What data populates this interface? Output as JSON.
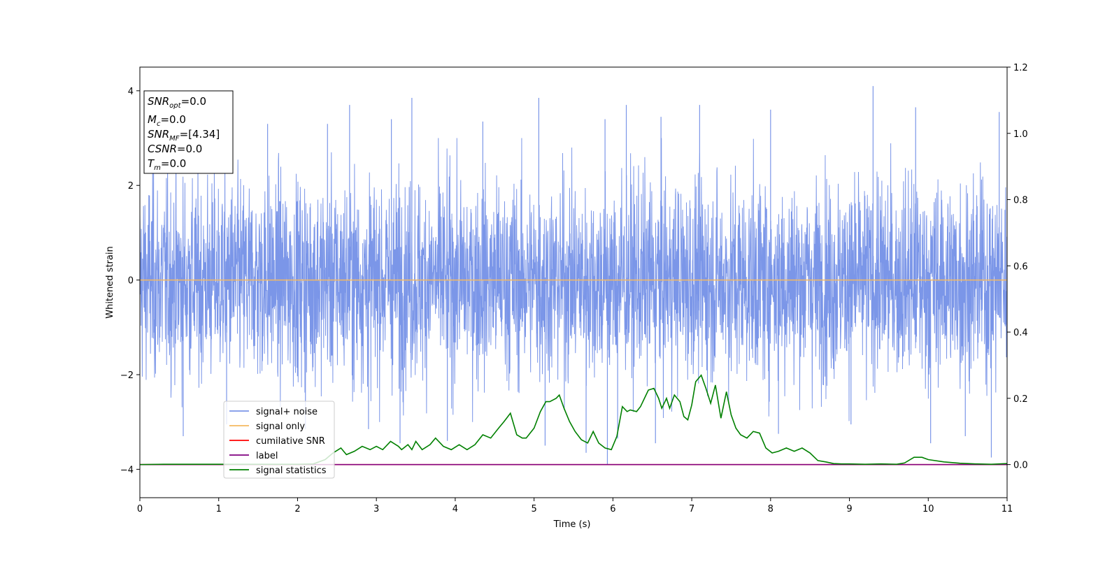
{
  "chart_data": {
    "type": "line",
    "xlabel": "Time (s)",
    "ylabel": "Whitened strain",
    "xlim": [
      0,
      11
    ],
    "ylim_left": [
      -4.6,
      4.5
    ],
    "ylim_right": [
      -0.1,
      1.2
    ],
    "x_ticks": [
      0,
      1,
      2,
      3,
      4,
      5,
      6,
      7,
      8,
      9,
      10,
      11
    ],
    "y_ticks_left": [
      -4,
      -2,
      0,
      2,
      4
    ],
    "y_ticks_right": [
      0.0,
      0.2,
      0.4,
      0.6,
      0.8,
      1.0,
      1.2
    ],
    "grid": false,
    "legend_position": "lower-left",
    "series": [
      {
        "name": "signal+ noise",
        "axis": "left",
        "color": "#7b96e8",
        "style": "dense noise, approximately within [-3.9, 4.1]",
        "values": [],
        "spikes": [
          {
            "x": 1.62,
            "y": 3.3
          },
          {
            "x": 2.38,
            "y": 3.3
          },
          {
            "x": 2.66,
            "y": 3.7
          },
          {
            "x": 3.19,
            "y": 3.4
          },
          {
            "x": 3.45,
            "y": 3.85
          },
          {
            "x": 4.35,
            "y": 3.35
          },
          {
            "x": 5.06,
            "y": 3.85
          },
          {
            "x": 5.9,
            "y": 3.4
          },
          {
            "x": 6.17,
            "y": 3.7
          },
          {
            "x": 6.61,
            "y": 3.45
          },
          {
            "x": 7.1,
            "y": 3.7
          },
          {
            "x": 8.0,
            "y": 3.6
          },
          {
            "x": 9.3,
            "y": 4.1
          },
          {
            "x": 9.84,
            "y": 3.65
          },
          {
            "x": 10.9,
            "y": 3.55
          },
          {
            "x": 0.55,
            "y": -3.3
          },
          {
            "x": 1.1,
            "y": -3.05
          },
          {
            "x": 2.1,
            "y": -3.15
          },
          {
            "x": 2.9,
            "y": -3.15
          },
          {
            "x": 3.3,
            "y": -3.45
          },
          {
            "x": 3.9,
            "y": -3.4
          },
          {
            "x": 5.14,
            "y": -3.5
          },
          {
            "x": 5.66,
            "y": -3.65
          },
          {
            "x": 5.93,
            "y": -3.9
          },
          {
            "x": 6.06,
            "y": -3.35
          },
          {
            "x": 6.54,
            "y": -3.45
          },
          {
            "x": 8.1,
            "y": -3.25
          },
          {
            "x": 9.02,
            "y": -3.05
          },
          {
            "x": 10.03,
            "y": -3.45
          },
          {
            "x": 10.47,
            "y": -3.3
          },
          {
            "x": 10.8,
            "y": -3.75
          }
        ]
      },
      {
        "name": "signal only",
        "axis": "left",
        "color": "#f5b961",
        "x": [
          0,
          11
        ],
        "values": [
          0,
          0
        ]
      },
      {
        "name": "cumilative SNR",
        "axis": "right",
        "color": "#ff0000",
        "x": [
          0,
          11
        ],
        "values": [
          0,
          0
        ]
      },
      {
        "name": "label",
        "axis": "right",
        "color": "#800080",
        "x": [
          0,
          11
        ],
        "values": [
          0,
          0
        ]
      },
      {
        "name": "signal statistics",
        "axis": "right",
        "color": "#008000",
        "x": [
          0,
          0.3,
          1.2,
          1.5,
          1.8,
          2.0,
          2.2,
          2.35,
          2.45,
          2.55,
          2.62,
          2.72,
          2.82,
          2.92,
          3.0,
          3.08,
          3.18,
          3.28,
          3.32,
          3.4,
          3.45,
          3.5,
          3.58,
          3.68,
          3.75,
          3.85,
          3.95,
          4.05,
          4.15,
          4.25,
          4.35,
          4.45,
          4.55,
          4.62,
          4.7,
          4.78,
          4.85,
          4.9,
          5.0,
          5.08,
          5.15,
          5.2,
          5.28,
          5.32,
          5.38,
          5.45,
          5.52,
          5.6,
          5.68,
          5.75,
          5.82,
          5.9,
          5.98,
          6.05,
          6.12,
          6.18,
          6.22,
          6.3,
          6.35,
          6.4,
          6.45,
          6.52,
          6.58,
          6.62,
          6.68,
          6.72,
          6.78,
          6.85,
          6.9,
          6.95,
          7.0,
          7.05,
          7.12,
          7.18,
          7.24,
          7.3,
          7.37,
          7.44,
          7.5,
          7.56,
          7.62,
          7.7,
          7.78,
          7.86,
          7.94,
          8.02,
          8.1,
          8.2,
          8.3,
          8.4,
          8.5,
          8.6,
          8.7,
          8.8,
          8.9,
          9.0,
          9.2,
          9.4,
          9.6,
          9.7,
          9.82,
          9.92,
          10.0,
          10.2,
          10.4,
          10.6,
          10.8,
          11.0
        ],
        "values": [
          0,
          0.001,
          0.001,
          0.001,
          0.001,
          0.001,
          0.002,
          0.015,
          0.035,
          0.05,
          0.03,
          0.04,
          0.055,
          0.045,
          0.055,
          0.045,
          0.07,
          0.055,
          0.045,
          0.06,
          0.045,
          0.07,
          0.045,
          0.06,
          0.08,
          0.055,
          0.045,
          0.06,
          0.045,
          0.06,
          0.09,
          0.08,
          0.11,
          0.13,
          0.155,
          0.09,
          0.08,
          0.08,
          0.11,
          0.16,
          0.19,
          0.19,
          0.2,
          0.21,
          0.17,
          0.13,
          0.1,
          0.075,
          0.065,
          0.1,
          0.065,
          0.05,
          0.045,
          0.085,
          0.175,
          0.16,
          0.165,
          0.16,
          0.175,
          0.2,
          0.225,
          0.23,
          0.2,
          0.17,
          0.2,
          0.17,
          0.21,
          0.19,
          0.145,
          0.135,
          0.18,
          0.25,
          0.27,
          0.23,
          0.185,
          0.24,
          0.14,
          0.22,
          0.15,
          0.11,
          0.09,
          0.08,
          0.1,
          0.095,
          0.05,
          0.035,
          0.04,
          0.05,
          0.04,
          0.05,
          0.035,
          0.012,
          0.008,
          0.003,
          0.002,
          0.002,
          0.001,
          0.002,
          0.001,
          0.005,
          0.022,
          0.022,
          0.015,
          0.008,
          0.004,
          0.002,
          0.001,
          0.003
        ]
      }
    ]
  },
  "info_box": {
    "snr_opt_base": "SNR",
    "snr_opt_sub": "opt",
    "snr_opt_value": "=0.0",
    "mc_base": "M",
    "mc_sub": "c",
    "mc_value": "=0.0",
    "snr_mf_base": "SNR",
    "snr_mf_sub": "MF",
    "snr_mf_value": "=[4.34]",
    "csnr_base": "CSNR",
    "csnr_value": "=0.0",
    "tm_base": "T",
    "tm_sub": "m",
    "tm_value": "=0.0"
  }
}
